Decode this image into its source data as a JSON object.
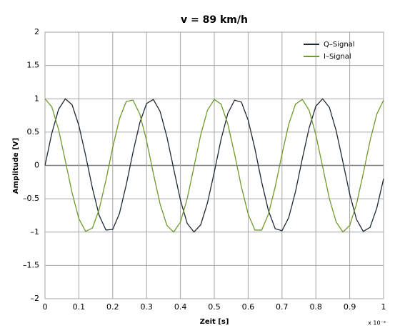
{
  "chart_data": {
    "type": "line",
    "title": "v = 89 km/h",
    "x_label": "Zeit [s]",
    "y_label": "Amplitude [V]",
    "x_annotation": "x 10⁻³",
    "x": [
      0,
      0.02,
      0.04,
      0.06,
      0.08,
      0.1,
      0.12,
      0.14,
      0.16,
      0.18,
      0.2,
      0.22,
      0.24,
      0.26,
      0.28,
      0.3,
      0.32,
      0.34,
      0.36,
      0.38,
      0.4,
      0.42,
      0.44,
      0.46,
      0.48,
      0.5,
      0.52,
      0.54,
      0.56,
      0.58,
      0.6,
      0.62,
      0.64,
      0.66,
      0.68,
      0.7,
      0.72,
      0.74,
      0.76,
      0.78,
      0.8,
      0.82,
      0.84,
      0.86,
      0.88,
      0.9,
      0.92,
      0.94,
      0.96,
      0.98,
      1
    ],
    "series": [
      {
        "name": "Q–Signal",
        "color": "#1f2a36",
        "values": [
          0,
          0.48,
          0.84,
          1.0,
          0.91,
          0.6,
          0.15,
          -0.34,
          -0.75,
          -0.97,
          -0.96,
          -0.72,
          -0.29,
          0.2,
          0.64,
          0.93,
          0.99,
          0.81,
          0.43,
          -0.05,
          -0.52,
          -0.87,
          -1.0,
          -0.89,
          -0.56,
          -0.1,
          0.39,
          0.78,
          0.98,
          0.95,
          0.68,
          0.25,
          -0.25,
          -0.68,
          -0.95,
          -0.98,
          -0.78,
          -0.39,
          0.1,
          0.56,
          0.89,
          1.0,
          0.87,
          0.52,
          0.05,
          -0.43,
          -0.81,
          -0.99,
          -0.93,
          -0.64,
          -0.2
        ]
      },
      {
        "name": "I–Signal",
        "color": "#6e9a2c",
        "values": [
          1.0,
          0.88,
          0.54,
          0.07,
          -0.41,
          -0.8,
          -0.99,
          -0.94,
          -0.66,
          -0.22,
          0.27,
          0.7,
          0.96,
          0.98,
          0.77,
          0.37,
          -0.12,
          -0.58,
          -0.9,
          -1.0,
          -0.85,
          -0.5,
          -0.02,
          0.46,
          0.83,
          0.99,
          0.92,
          0.62,
          0.17,
          -0.32,
          -0.73,
          -0.97,
          -0.97,
          -0.73,
          -0.32,
          0.17,
          0.62,
          0.92,
          0.99,
          0.83,
          0.46,
          -0.02,
          -0.5,
          -0.85,
          -1.0,
          -0.9,
          -0.58,
          -0.12,
          0.37,
          0.77,
          0.98
        ]
      }
    ],
    "xlim": [
      0,
      1
    ],
    "xticks": [
      0,
      0.1,
      0.2,
      0.3,
      0.4,
      0.5,
      0.6,
      0.7,
      0.8,
      0.9,
      1
    ],
    "ylim": [
      -2,
      2
    ],
    "yticks": [
      {
        "value": -2,
        "label": "–2"
      },
      {
        "value": -1.5,
        "label": "–1.5"
      },
      {
        "value": -1,
        "label": "–1"
      },
      {
        "value": -0.5,
        "label": "–0.5"
      },
      0,
      0.5,
      1,
      1.5,
      2
    ],
    "grid": true,
    "legend": "upper right"
  }
}
